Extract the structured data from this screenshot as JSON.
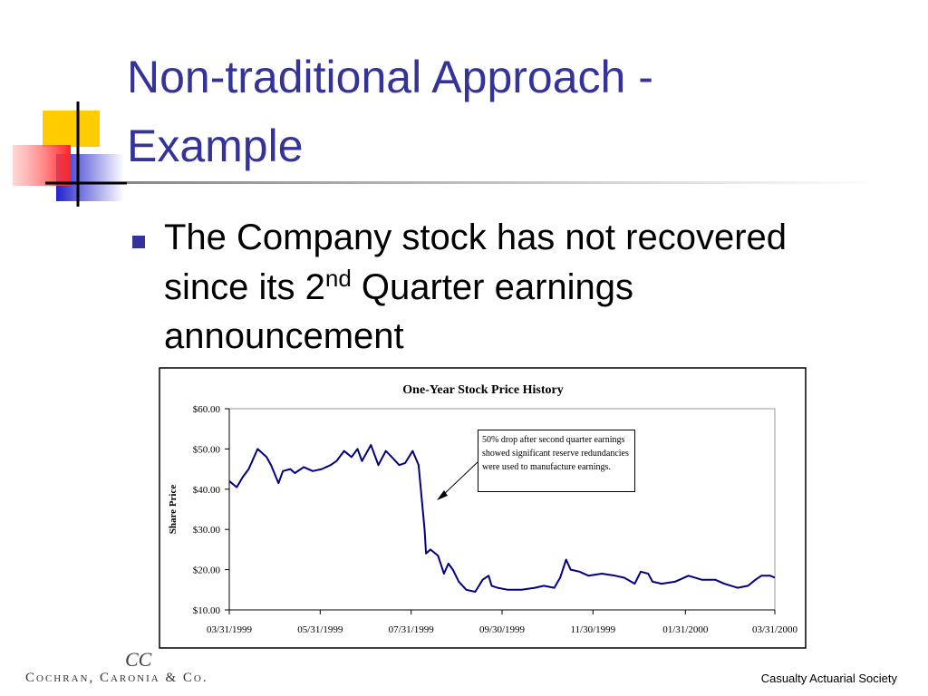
{
  "slide": {
    "title_lines": [
      "Non-traditional Approach -",
      "Example"
    ],
    "bullet": [
      "The Company stock has not recovered",
      "since its 2",
      "nd",
      " Quarter earnings",
      "announcement"
    ],
    "logo": "CC",
    "company": "Cochran, Caronia & Co.",
    "footer": "Casualty Actuarial Society"
  },
  "chart_data": {
    "type": "line",
    "title": "One-Year Stock Price History",
    "y_label": "Share Price",
    "annotation": "50% drop after second quarter earnings showed significant reserve redundancies were used to manufacture earnings.",
    "color": "#000080",
    "x": [
      "03/31/1999",
      "04/05/1999",
      "04/09/1999",
      "04/13/1999",
      "04/19/1999",
      "04/25/1999",
      "04/28/1999",
      "05/03/1999",
      "05/06/1999",
      "05/11/1999",
      "05/14/1999",
      "05/20/1999",
      "05/26/1999",
      "06/01/1999",
      "06/07/1999",
      "06/11/1999",
      "06/16/1999",
      "06/21/1999",
      "06/25/1999",
      "06/28/1999",
      "07/04/1999",
      "07/09/1999",
      "07/14/1999",
      "07/18/1999",
      "07/23/1999",
      "07/27/1999",
      "08/01/1999",
      "08/05/1999",
      "08/09/1999",
      "08/10/1999",
      "08/13/1999",
      "08/18/1999",
      "08/22/1999",
      "08/25/1999",
      "08/28/1999",
      "09/01/1999",
      "09/06/1999",
      "09/12/1999",
      "09/17/1999",
      "09/21/1999",
      "09/23/1999",
      "09/27/1999",
      "10/04/1999",
      "10/13/1999",
      "10/22/1999",
      "10/28/1999",
      "11/04/1999",
      "11/08/1999",
      "11/12/1999",
      "11/15/1999",
      "11/21/1999",
      "11/27/1999",
      "12/06/1999",
      "12/15/1999",
      "12/21/1999",
      "12/28/1999",
      "01/01/2000",
      "01/06/2000",
      "01/09/2000",
      "01/15/2000",
      "01/24/2000",
      "02/02/2000",
      "02/11/2000",
      "02/20/2000",
      "02/26/2000",
      "03/06/2000",
      "03/13/2000",
      "03/18/2000",
      "03/22/2000",
      "03/28/2000",
      "03/31/2000"
    ],
    "values": [
      42,
      40.5,
      43,
      45,
      50,
      48,
      46,
      41.5,
      44.5,
      45,
      44,
      45.5,
      44.5,
      45,
      46,
      47,
      49.5,
      48,
      50,
      47,
      51,
      46,
      49.5,
      48,
      46,
      46.5,
      49.5,
      46,
      30,
      24,
      25,
      23.5,
      19,
      21.5,
      20,
      17,
      15,
      14.5,
      17.5,
      18.5,
      16,
      15.5,
      15,
      15,
      15.5,
      16,
      15.5,
      18,
      22.5,
      20,
      19.5,
      18.5,
      19,
      18.5,
      18,
      16.5,
      19.5,
      19,
      17,
      16.5,
      17,
      18.5,
      17.5,
      17.5,
      16.5,
      15.5,
      16,
      17.5,
      18.5,
      18.5,
      18
    ],
    "xlim": [
      "03/31/1999",
      "03/31/2000"
    ],
    "xticks": [
      "03/31/1999",
      "05/31/1999",
      "07/31/1999",
      "09/30/1999",
      "11/30/1999",
      "01/31/2000",
      "03/31/2000"
    ],
    "ylim": [
      10,
      60
    ],
    "yticks": [
      {
        "value": 10,
        "label": "$10.00"
      },
      {
        "value": 20,
        "label": "$20.00"
      },
      {
        "value": 30,
        "label": "$30.00"
      },
      {
        "value": 40,
        "label": "$40.00"
      },
      {
        "value": 50,
        "label": "$50.00"
      },
      {
        "value": 60,
        "label": "$60.00"
      }
    ],
    "grid": false
  }
}
